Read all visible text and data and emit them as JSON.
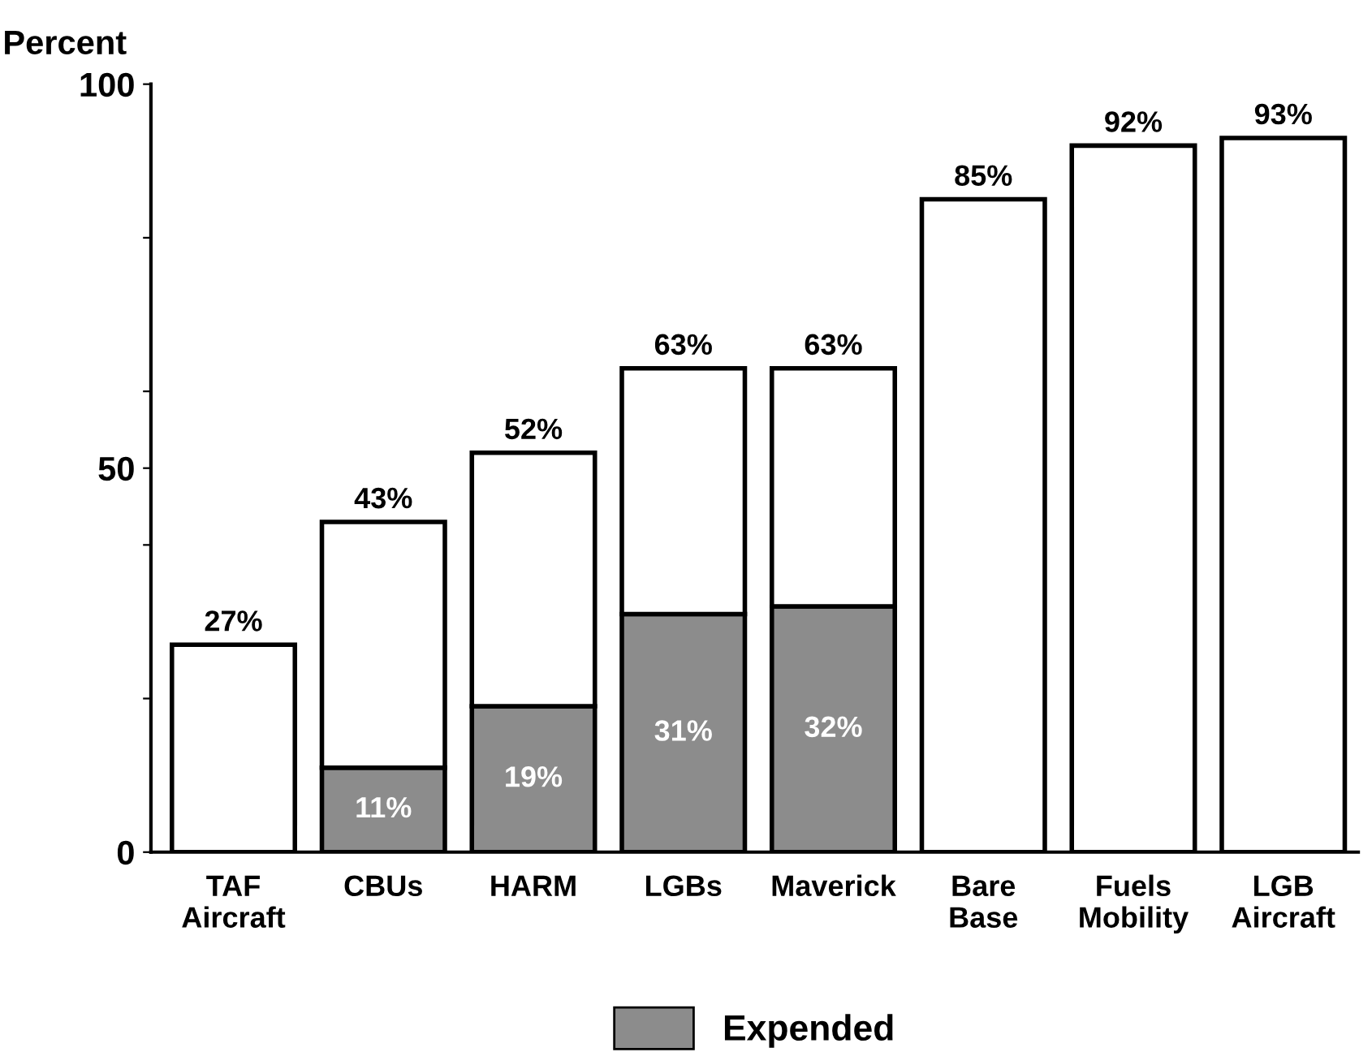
{
  "chart_data": {
    "type": "bar",
    "stacked": true,
    "ylabel": "Percent",
    "categories": [
      "TAF\nAircraft",
      "CBUs",
      "HARM",
      "LGBs",
      "Maverick",
      "Bare\nBase",
      "Fuels\nMobility",
      "LGB\nAircraft"
    ],
    "series": [
      {
        "name": "Expended",
        "color": "#8c8c8c",
        "values": [
          null,
          11,
          19,
          31,
          32,
          null,
          null,
          null
        ],
        "value_labels": [
          null,
          "11%",
          "19%",
          "31%",
          "32%",
          null,
          null,
          null
        ]
      },
      {
        "color": "#ffffff",
        "values": [
          27,
          32,
          33,
          32,
          31,
          85,
          92,
          93
        ]
      }
    ],
    "totals": [
      "27%",
      "43%",
      "52%",
      "63%",
      "63%",
      "85%",
      "92%",
      "93%"
    ],
    "ylim": [
      0,
      100
    ],
    "yticks": [
      0,
      {
        "value": 20,
        "label": null
      },
      {
        "value": 40,
        "label": null
      },
      50,
      {
        "value": 60,
        "label": null
      },
      {
        "value": 80,
        "label": null
      },
      100
    ],
    "grid": false,
    "legend": "bottom"
  }
}
